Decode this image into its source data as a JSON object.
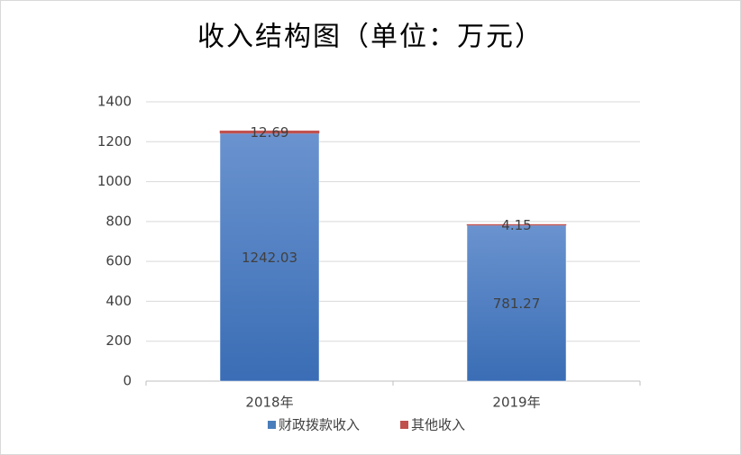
{
  "chart_data": {
    "type": "bar",
    "stacked": true,
    "title": "收入结构图（单位：万元）",
    "categories": [
      "2018年",
      "2019年"
    ],
    "series": [
      {
        "name": "财政拨款收入",
        "color": "#4a7ebb",
        "values": [
          1242.03,
          781.27
        ]
      },
      {
        "name": "其他收入",
        "color": "#c0504d",
        "values": [
          12.69,
          4.15
        ]
      }
    ],
    "ylim": [
      0,
      1400
    ],
    "yticks": [
      0,
      200,
      400,
      600,
      800,
      1000,
      1200,
      1400
    ],
    "grid": true,
    "legend": "bottom"
  }
}
